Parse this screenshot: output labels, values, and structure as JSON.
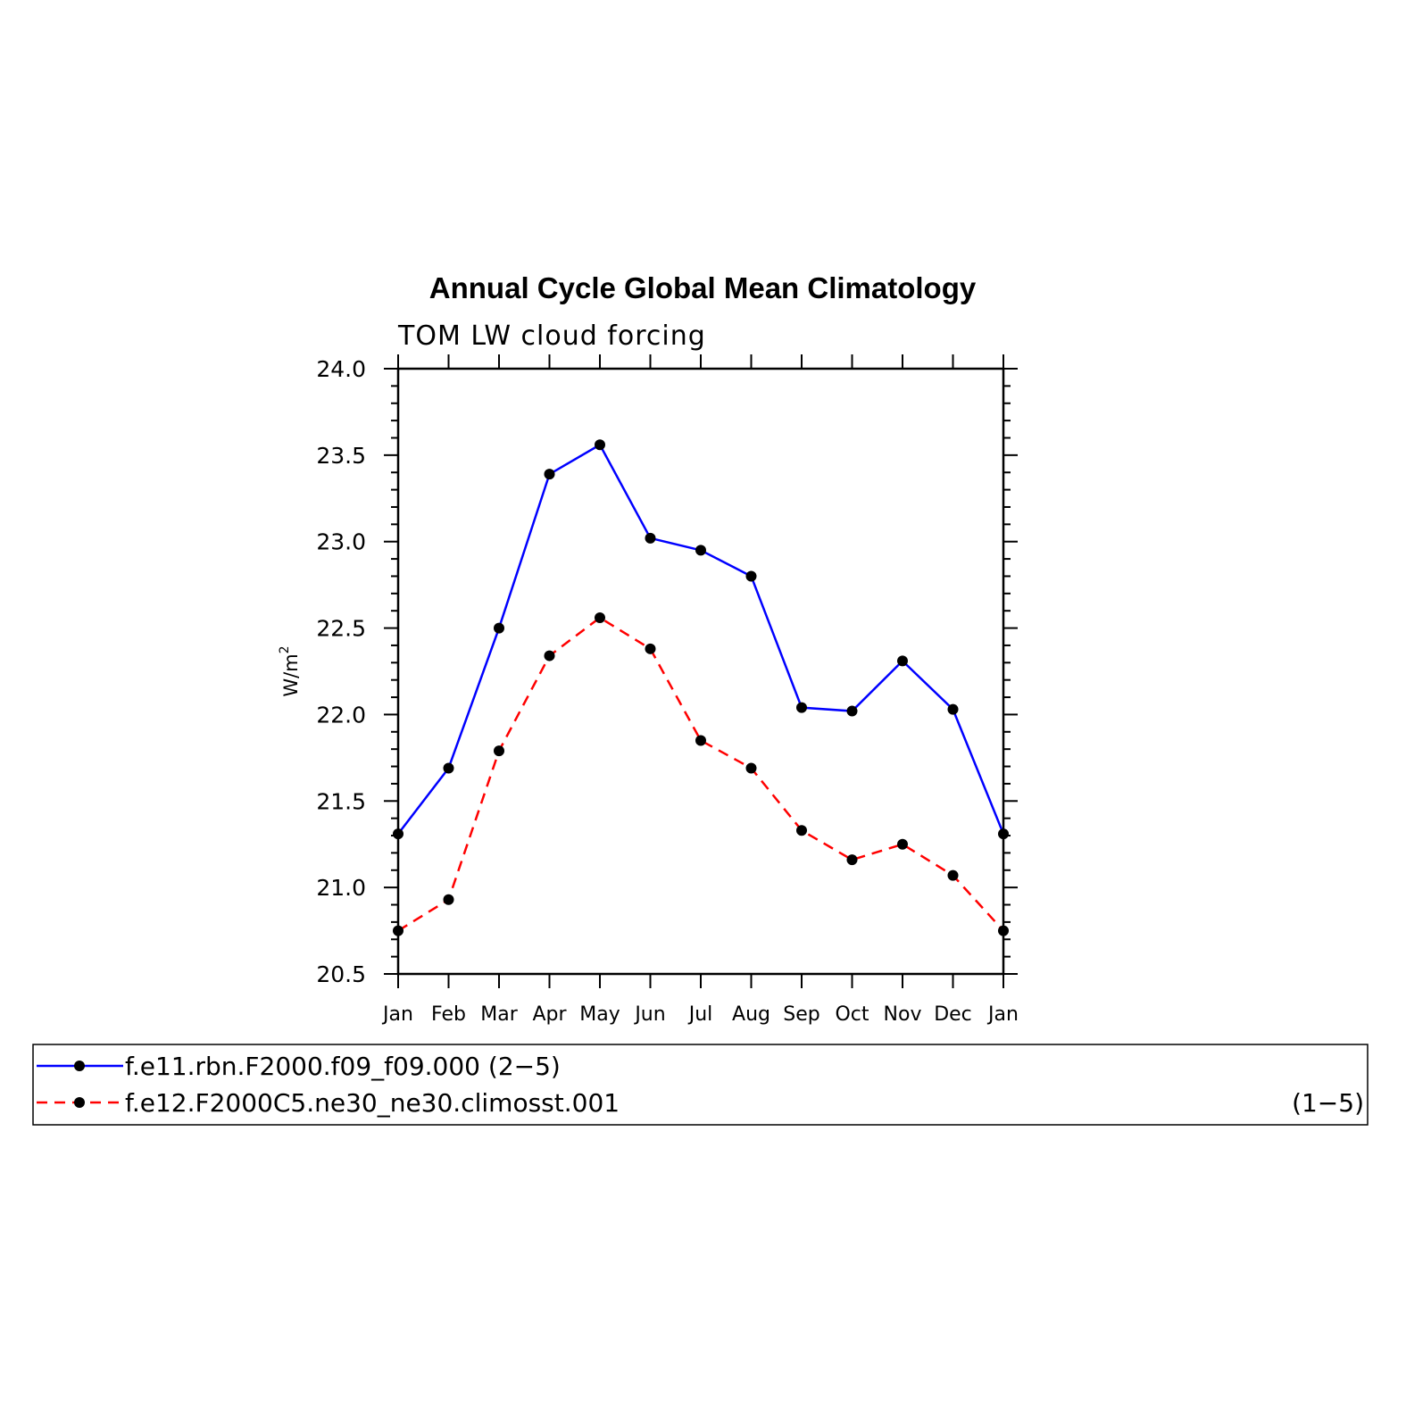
{
  "chart_data": {
    "type": "line",
    "title": "Annual Cycle Global Mean Climatology",
    "subtitle": "TOM LW cloud forcing",
    "xlabel": "",
    "ylabel": "W/m",
    "ylabel_superscript": "2",
    "ylim": [
      20.5,
      24.0
    ],
    "yticks": [
      "20.5",
      "21.0",
      "21.5",
      "22.0",
      "22.5",
      "23.0",
      "23.5",
      "24.0"
    ],
    "categories": [
      "Jan",
      "Feb",
      "Mar",
      "Apr",
      "May",
      "Jun",
      "Jul",
      "Aug",
      "Sep",
      "Oct",
      "Nov",
      "Dec",
      "Jan"
    ],
    "grid": false,
    "legend_position": "bottom",
    "series": [
      {
        "name": "f.e11.rbn.F2000.f09_f09.000",
        "range_label": "(2−5)",
        "color": "#0000ff",
        "dash": "solid",
        "marker_color": "#000000",
        "values": [
          21.31,
          21.69,
          22.5,
          23.39,
          23.56,
          23.02,
          22.95,
          22.8,
          22.04,
          22.02,
          22.31,
          22.03,
          21.31
        ]
      },
      {
        "name": "f.e12.F2000C5.ne30_ne30.climosst.001",
        "range_label": "(1−5)",
        "color": "#ff0000",
        "dash": "dashed",
        "marker_color": "#000000",
        "values": [
          20.75,
          20.93,
          21.79,
          22.34,
          22.56,
          22.38,
          21.85,
          21.69,
          21.33,
          21.16,
          21.25,
          21.07,
          20.75
        ]
      }
    ]
  }
}
